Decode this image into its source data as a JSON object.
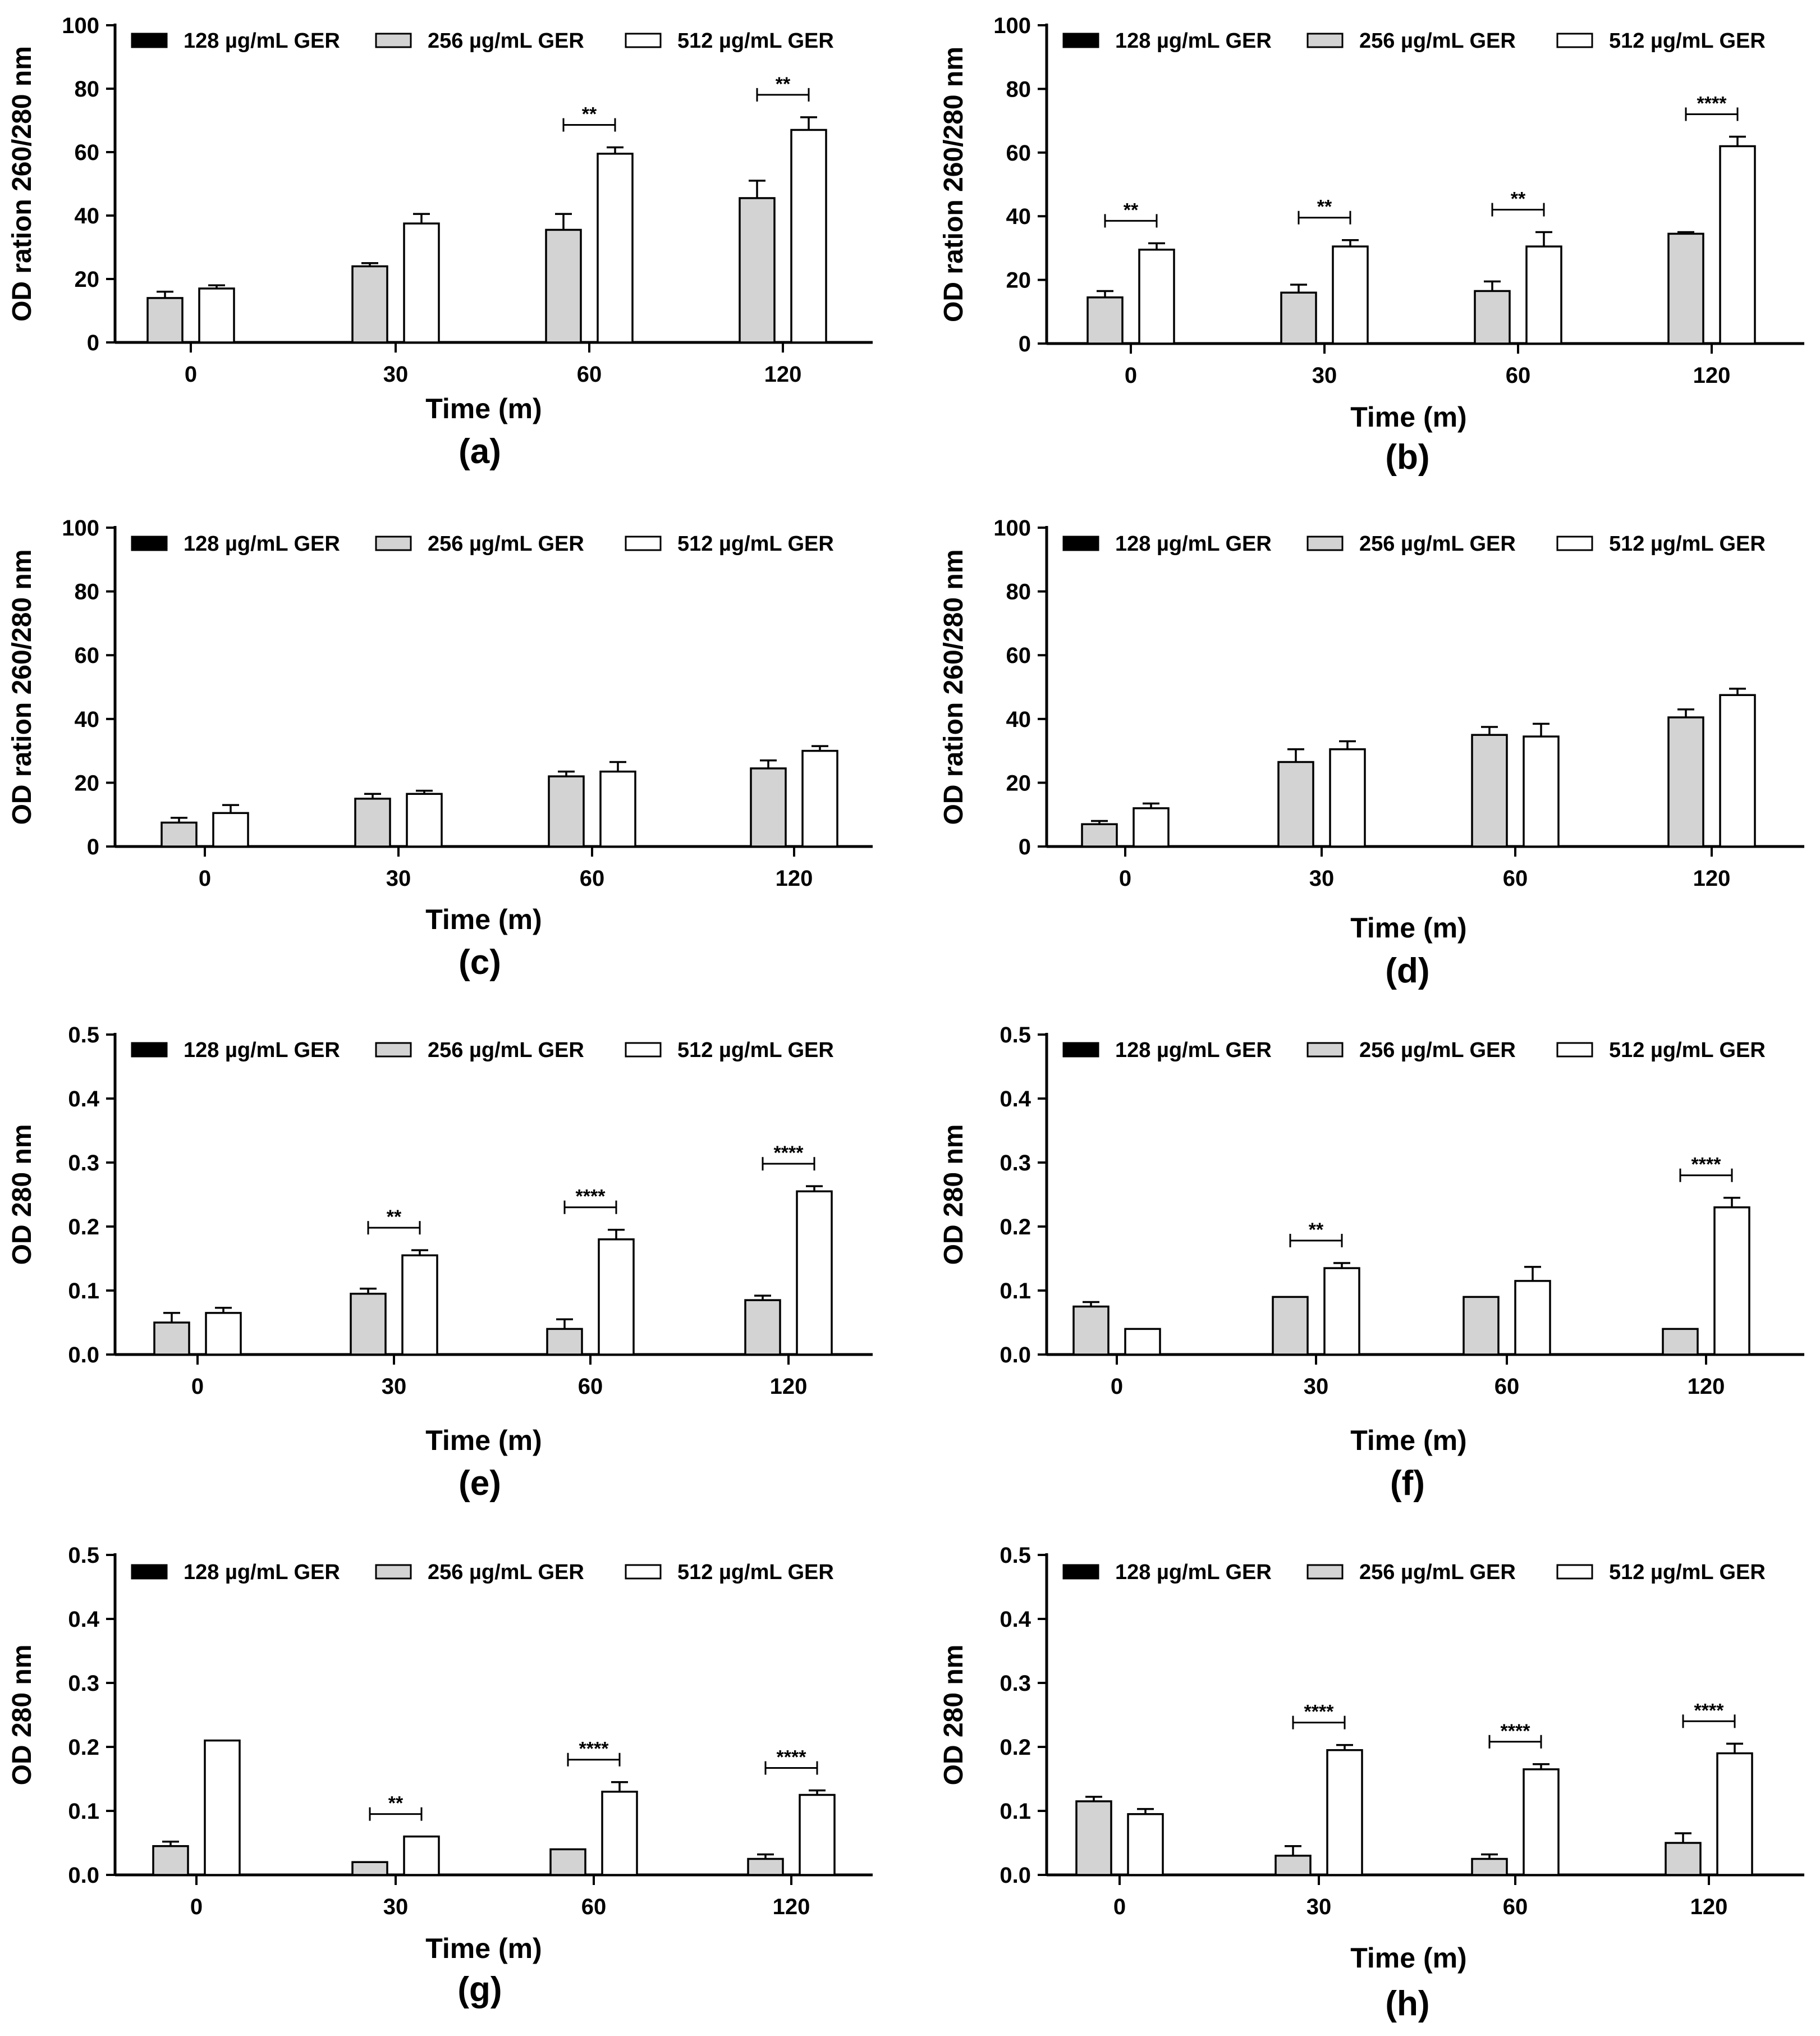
{
  "legend": [
    "128 µg/mL GER",
    "256 µg/mL GER",
    "512 µg/mL GER"
  ],
  "colors": {
    "series_128": "#000000",
    "series_256": "#d3d3d3",
    "series_512": "#ffffff",
    "axis": "#000000"
  },
  "chart_data": [
    {
      "type": "bar",
      "panel": "(a)",
      "categories": [
        "0",
        "30",
        "60",
        "120"
      ],
      "xlabel": "Time (m)",
      "ylabel": "OD ration 260/280 nm",
      "ylim": [
        0,
        100
      ],
      "yticks": [
        0,
        20,
        40,
        60,
        80,
        100
      ],
      "series": [
        {
          "name": "128 µg/mL GER",
          "values": [
            0,
            0,
            0,
            0
          ],
          "err": [
            0,
            0,
            0,
            0
          ]
        },
        {
          "name": "256 µg/mL GER",
          "values": [
            14,
            24,
            35.5,
            45.5
          ],
          "err": [
            2,
            1,
            5,
            5.5
          ]
        },
        {
          "name": "512 µg/mL GER",
          "values": [
            17,
            37.5,
            59.5,
            67
          ],
          "err": [
            1,
            3,
            2,
            4
          ]
        }
      ],
      "annotations": [
        {
          "category": "60",
          "text": "**"
        },
        {
          "category": "120",
          "text": "**"
        }
      ]
    },
    {
      "type": "bar",
      "panel": "(b)",
      "categories": [
        "0",
        "30",
        "60",
        "120"
      ],
      "xlabel": "Time (m)",
      "ylabel": "OD ration 260/280 nm",
      "ylim": [
        0,
        100
      ],
      "yticks": [
        0,
        20,
        40,
        60,
        80,
        100
      ],
      "series": [
        {
          "name": "128 µg/mL GER",
          "values": [
            0,
            0,
            0,
            0
          ],
          "err": [
            0,
            0,
            0,
            0
          ]
        },
        {
          "name": "256 µg/mL GER",
          "values": [
            14.5,
            16,
            16.5,
            34.5
          ],
          "err": [
            2,
            2.5,
            3,
            0.5
          ]
        },
        {
          "name": "512 µg/mL GER",
          "values": [
            29.5,
            30.5,
            30.5,
            62
          ],
          "err": [
            2,
            2,
            4.5,
            3
          ]
        }
      ],
      "annotations": [
        {
          "category": "0",
          "text": "**"
        },
        {
          "category": "30",
          "text": "**"
        },
        {
          "category": "60",
          "text": "**"
        },
        {
          "category": "120",
          "text": "****"
        }
      ]
    },
    {
      "type": "bar",
      "panel": "(c)",
      "categories": [
        "0",
        "30",
        "60",
        "120"
      ],
      "xlabel": "Time (m)",
      "ylabel": "OD ration 260/280 nm",
      "ylim": [
        0,
        100
      ],
      "yticks": [
        0,
        20,
        40,
        60,
        80,
        100
      ],
      "series": [
        {
          "name": "128 µg/mL GER",
          "values": [
            0,
            0,
            0,
            0
          ],
          "err": [
            0,
            0,
            0,
            0
          ]
        },
        {
          "name": "256 µg/mL GER",
          "values": [
            7.5,
            15,
            22,
            24.5
          ],
          "err": [
            1.5,
            1.5,
            1.5,
            2.5
          ]
        },
        {
          "name": "512 µg/mL GER",
          "values": [
            10.5,
            16.5,
            23.5,
            30
          ],
          "err": [
            2.5,
            1,
            3,
            1.5
          ]
        }
      ],
      "annotations": []
    },
    {
      "type": "bar",
      "panel": "(d)",
      "categories": [
        "0",
        "30",
        "60",
        "120"
      ],
      "xlabel": "Time (m)",
      "ylabel": "OD ration 260/280 nm",
      "ylim": [
        0,
        100
      ],
      "yticks": [
        0,
        20,
        40,
        60,
        80,
        100
      ],
      "series": [
        {
          "name": "128 µg/mL GER",
          "values": [
            0,
            0,
            0,
            0
          ],
          "err": [
            0,
            0,
            0,
            0
          ]
        },
        {
          "name": "256 µg/mL GER",
          "values": [
            7,
            26.5,
            35,
            40.5
          ],
          "err": [
            1,
            4,
            2.5,
            2.5
          ]
        },
        {
          "name": "512 µg/mL GER",
          "values": [
            12,
            30.5,
            34.5,
            47.5
          ],
          "err": [
            1.5,
            2.5,
            4,
            2
          ]
        }
      ],
      "annotations": []
    },
    {
      "type": "bar",
      "panel": "(e)",
      "categories": [
        "0",
        "30",
        "60",
        "120"
      ],
      "xlabel": "Time (m)",
      "ylabel": "OD 280 nm",
      "ylim": [
        0,
        0.5
      ],
      "yticks": [
        0.0,
        0.1,
        0.2,
        0.3,
        0.4,
        0.5
      ],
      "series": [
        {
          "name": "128 µg/mL GER",
          "values": [
            0,
            0,
            0,
            0
          ],
          "err": [
            0,
            0,
            0,
            0
          ]
        },
        {
          "name": "256 µg/mL GER",
          "values": [
            0.05,
            0.095,
            0.04,
            0.085
          ],
          "err": [
            0.015,
            0.008,
            0.015,
            0.007
          ]
        },
        {
          "name": "512 µg/mL GER",
          "values": [
            0.065,
            0.155,
            0.18,
            0.255
          ],
          "err": [
            0.008,
            0.008,
            0.015,
            0.008
          ]
        }
      ],
      "annotations": [
        {
          "category": "30",
          "text": "**"
        },
        {
          "category": "60",
          "text": "****"
        },
        {
          "category": "120",
          "text": "****"
        }
      ]
    },
    {
      "type": "bar",
      "panel": "(f)",
      "categories": [
        "0",
        "30",
        "60",
        "120"
      ],
      "xlabel": "Time (m)",
      "ylabel": "OD 280 nm",
      "ylim": [
        0,
        0.5
      ],
      "yticks": [
        0.0,
        0.1,
        0.2,
        0.3,
        0.4,
        0.5
      ],
      "series": [
        {
          "name": "128 µg/mL GER",
          "values": [
            0,
            0,
            0,
            0
          ],
          "err": [
            0,
            0,
            0,
            0
          ]
        },
        {
          "name": "256 µg/mL GER",
          "values": [
            0.075,
            0.09,
            0.09,
            0.04
          ],
          "err": [
            0.007,
            0,
            0,
            0
          ]
        },
        {
          "name": "512 µg/mL GER",
          "values": [
            0.04,
            0.135,
            0.115,
            0.23
          ],
          "err": [
            0,
            0.008,
            0.022,
            0.015
          ]
        }
      ],
      "annotations": [
        {
          "category": "30",
          "text": "**"
        },
        {
          "category": "120",
          "text": "****"
        }
      ]
    },
    {
      "type": "bar",
      "panel": "(g)",
      "categories": [
        "0",
        "30",
        "60",
        "120"
      ],
      "xlabel": "Time (m)",
      "ylabel": "OD 280 nm",
      "ylim": [
        0,
        0.5
      ],
      "yticks": [
        0.0,
        0.1,
        0.2,
        0.3,
        0.4,
        0.5
      ],
      "series": [
        {
          "name": "128 µg/mL GER",
          "values": [
            0,
            0,
            0,
            0
          ],
          "err": [
            0,
            0,
            0,
            0
          ]
        },
        {
          "name": "256 µg/mL GER",
          "values": [
            0.045,
            0.02,
            0.04,
            0.025
          ],
          "err": [
            0.007,
            0,
            0,
            0.007
          ]
        },
        {
          "name": "512 µg/mL GER",
          "values": [
            0.21,
            0.06,
            0.13,
            0.125
          ],
          "err": [
            0,
            0,
            0.015,
            0.007
          ]
        }
      ],
      "annotations": [
        {
          "category": "30",
          "text": "**"
        },
        {
          "category": "60",
          "text": "****"
        },
        {
          "category": "120",
          "text": "****"
        }
      ]
    },
    {
      "type": "bar",
      "panel": "(h)",
      "categories": [
        "0",
        "30",
        "60",
        "120"
      ],
      "xlabel": "Time (m)",
      "ylabel": "OD 280 nm",
      "ylim": [
        0,
        0.5
      ],
      "yticks": [
        0.0,
        0.1,
        0.2,
        0.3,
        0.4,
        0.5
      ],
      "series": [
        {
          "name": "128 µg/mL GER",
          "values": [
            0,
            0,
            0,
            0
          ],
          "err": [
            0,
            0,
            0,
            0
          ]
        },
        {
          "name": "256 µg/mL GER",
          "values": [
            0.115,
            0.03,
            0.025,
            0.05
          ],
          "err": [
            0.007,
            0.015,
            0.007,
            0.015
          ]
        },
        {
          "name": "512 µg/mL GER",
          "values": [
            0.095,
            0.195,
            0.165,
            0.19
          ],
          "err": [
            0.008,
            0.008,
            0.008,
            0.015
          ]
        }
      ],
      "annotations": [
        {
          "category": "30",
          "text": "****"
        },
        {
          "category": "60",
          "text": "****"
        },
        {
          "category": "120",
          "text": "****"
        }
      ]
    }
  ]
}
